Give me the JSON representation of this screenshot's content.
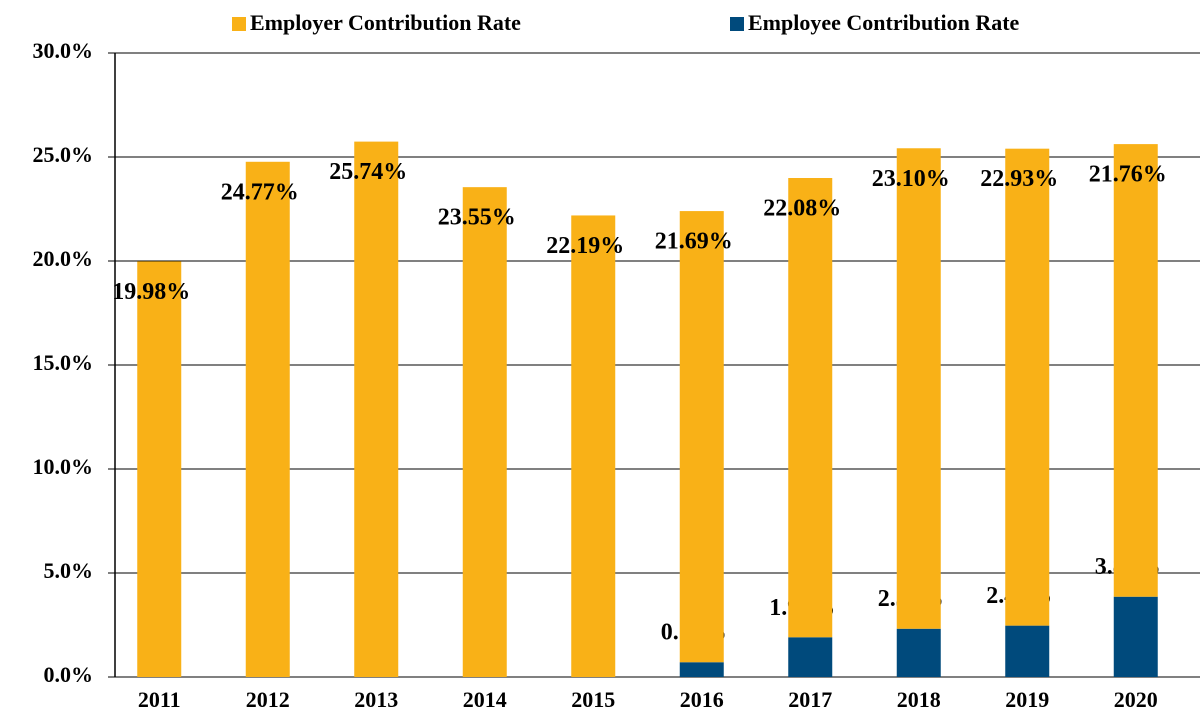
{
  "chart_data": {
    "type": "stacked_bar",
    "categories": [
      "2011",
      "2012",
      "2013",
      "2014",
      "2015",
      "2016",
      "2017",
      "2018",
      "2019",
      "2020"
    ],
    "series": [
      {
        "name": "Employee Contribution Rate",
        "color": "#004a7c",
        "values": [
          null,
          null,
          null,
          null,
          null,
          0.71,
          1.91,
          2.32,
          2.47,
          3.86
        ],
        "value_labels": [
          null,
          null,
          null,
          null,
          null,
          "0.71%",
          "1.91%",
          "2.32%",
          "2.47%",
          "3.86%"
        ]
      },
      {
        "name": "Employer Contribution Rate",
        "color": "#f9b117",
        "values": [
          19.98,
          24.77,
          25.74,
          23.55,
          22.19,
          21.69,
          22.08,
          23.1,
          22.93,
          21.76
        ],
        "value_labels": [
          "19.98%",
          "24.77%",
          "25.74%",
          "23.55%",
          "22.19%",
          "21.69%",
          "22.08%",
          "23.10%",
          "22.93%",
          "21.76%"
        ]
      }
    ],
    "ylim": [
      0,
      30
    ],
    "yticks": [
      {
        "value": 0,
        "label": "0.0%"
      },
      {
        "value": 5,
        "label": "5.0%"
      },
      {
        "value": 10,
        "label": "10.0%"
      },
      {
        "value": 15,
        "label": "15.0%"
      },
      {
        "value": 20,
        "label": "20.0%"
      },
      {
        "value": 25,
        "label": "25.0%"
      },
      {
        "value": 30,
        "label": "30.0%"
      }
    ],
    "grid": true,
    "legend": "top"
  }
}
